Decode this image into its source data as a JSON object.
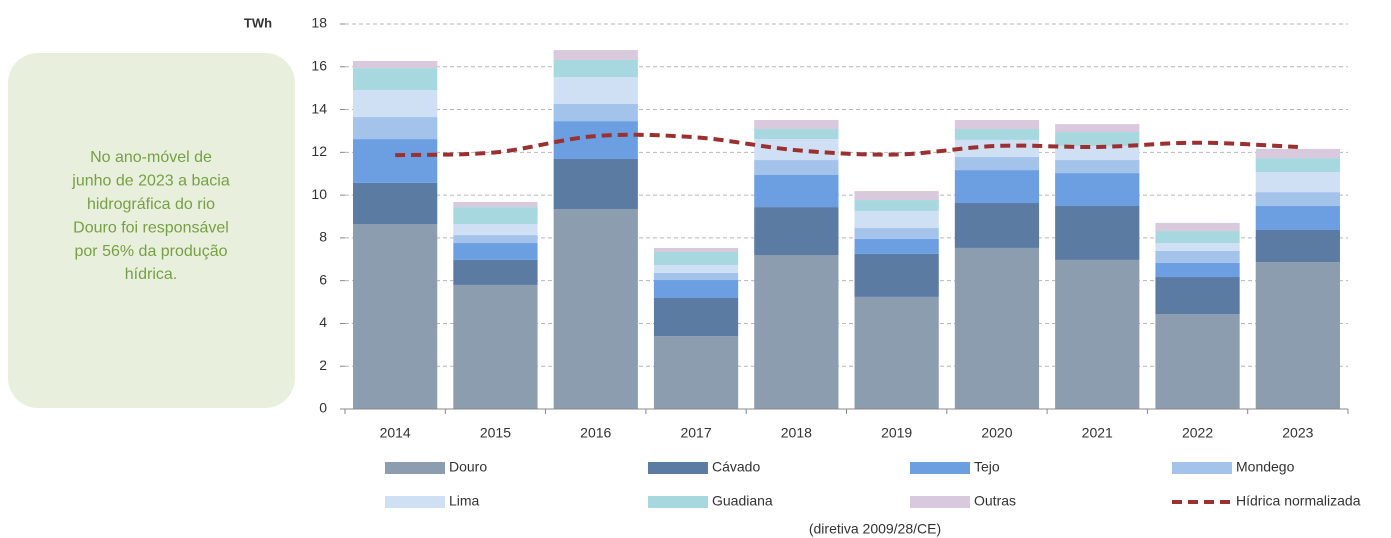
{
  "chart_data": {
    "type": "stacked_bar_line",
    "y_label": "TWh",
    "annotation_lines": [
      "No ano-móvel de",
      "junho de 2023 a bacia",
      "hidrográfica do rio",
      "Douro foi responsável",
      "por 56% da produção",
      "hídrica."
    ],
    "legend_note": "(diretiva 2009/28/CE)",
    "categories": [
      "2014",
      "2015",
      "2016",
      "2017",
      "2018",
      "2019",
      "2020",
      "2021",
      "2022",
      "2023"
    ],
    "series": [
      {
        "name": "Douro",
        "color": "#8c9db0",
        "values": [
          8.65,
          5.8,
          9.35,
          3.41,
          7.2,
          5.24,
          7.53,
          6.97,
          4.44,
          6.87
        ]
      },
      {
        "name": "Cávado",
        "color": "#5b7ba3",
        "values": [
          1.92,
          1.17,
          2.34,
          1.78,
          2.24,
          2.01,
          2.1,
          2.52,
          1.73,
          1.5
        ]
      },
      {
        "name": "Tejo",
        "color": "#6c9fe2",
        "values": [
          2.05,
          0.79,
          1.77,
          0.84,
          1.5,
          0.7,
          1.54,
          1.54,
          0.66,
          1.12
        ]
      },
      {
        "name": "Mondego",
        "color": "#a4c3eb",
        "values": [
          1.03,
          0.37,
          0.8,
          0.33,
          0.7,
          0.51,
          0.61,
          0.61,
          0.56,
          0.65
        ]
      },
      {
        "name": "Lima",
        "color": "#d0e0f4",
        "values": [
          1.26,
          0.52,
          1.26,
          0.37,
          0.98,
          0.8,
          0.8,
          0.66,
          0.37,
          0.94
        ]
      },
      {
        "name": "Guadiana",
        "color": "#a8d8df",
        "values": [
          1.03,
          0.79,
          0.8,
          0.61,
          0.47,
          0.51,
          0.51,
          0.65,
          0.56,
          0.65
        ]
      },
      {
        "name": "Outras",
        "color": "#d8c9dd",
        "values": [
          0.33,
          0.24,
          0.46,
          0.19,
          0.42,
          0.42,
          0.42,
          0.37,
          0.38,
          0.43
        ]
      },
      {
        "name": "Hídrica normalizada",
        "color": "#9b3030",
        "kind": "line",
        "values": [
          11.87,
          12.0,
          12.76,
          12.7,
          12.1,
          11.9,
          12.3,
          12.25,
          12.45,
          12.25
        ]
      }
    ],
    "ylim": [
      0,
      18
    ],
    "yticks": [
      0,
      2,
      4,
      6,
      8,
      10,
      12,
      14,
      16,
      18
    ],
    "grid": true
  }
}
